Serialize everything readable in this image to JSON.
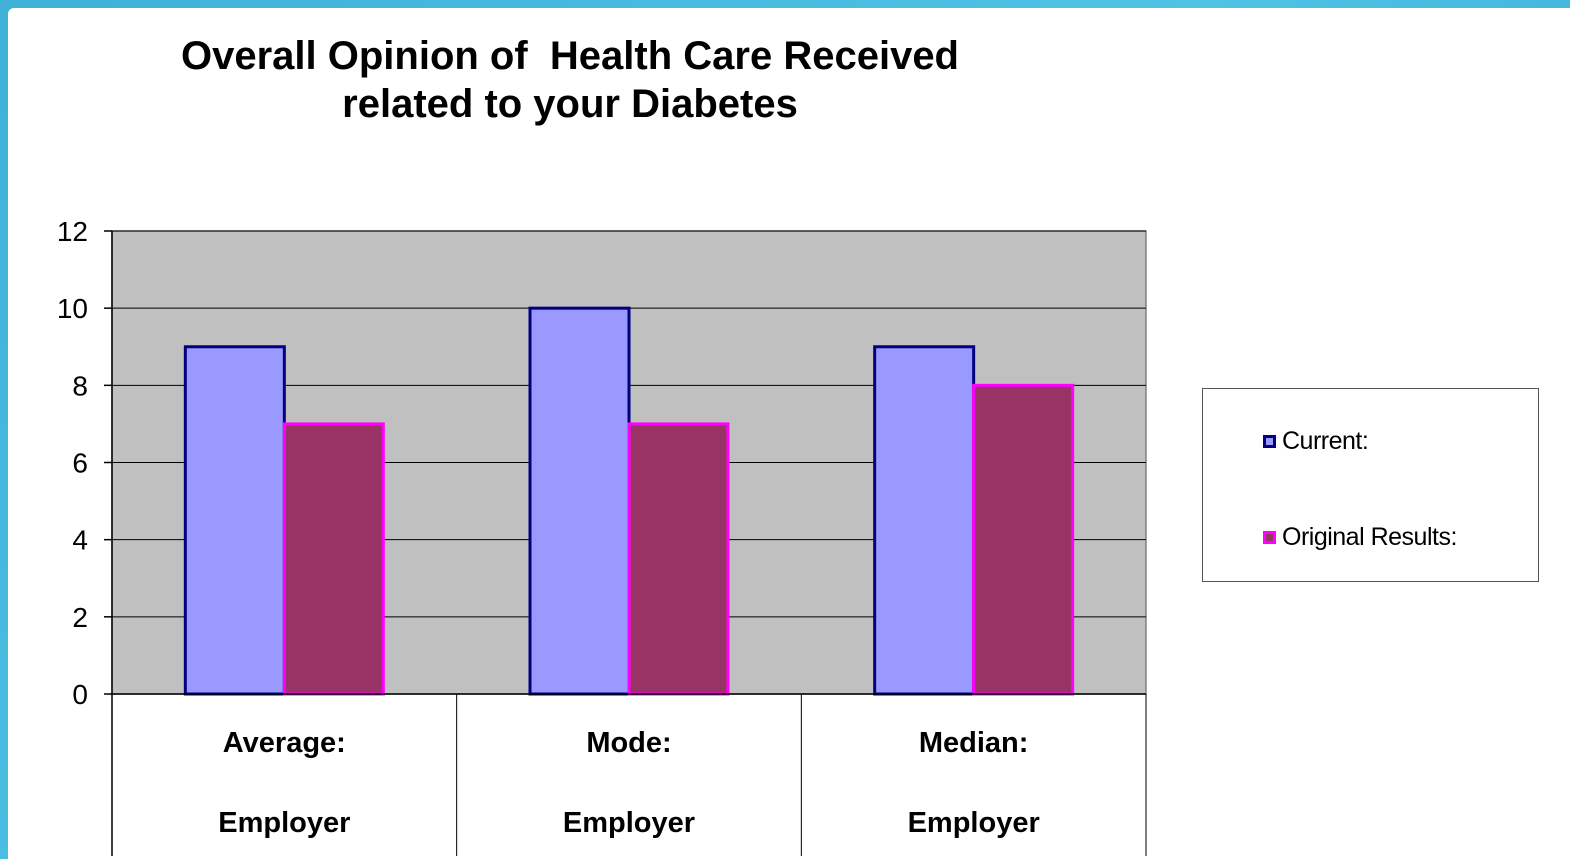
{
  "chart_data": {
    "type": "bar",
    "title_lines": [
      "Overall Opinion of  Health Care Received",
      "related to your Diabetes"
    ],
    "categories": [
      {
        "label": "Average:",
        "sub": "Employer"
      },
      {
        "label": "Mode:",
        "sub": "Employer"
      },
      {
        "label": "Median:",
        "sub": "Employer"
      }
    ],
    "series": [
      {
        "name": "Current:",
        "values": [
          9,
          10,
          9
        ],
        "fill": "#9999ff",
        "stroke": "#000080"
      },
      {
        "name": "Original Results:",
        "values": [
          7,
          7,
          8
        ],
        "fill": "#993366",
        "stroke": "#ff00ff"
      }
    ],
    "ylim": [
      0,
      12
    ],
    "yticks": [
      0,
      2,
      4,
      6,
      8,
      10,
      12
    ],
    "grid": true,
    "plot_background": "#c0c0c0",
    "legend_position": "right"
  }
}
